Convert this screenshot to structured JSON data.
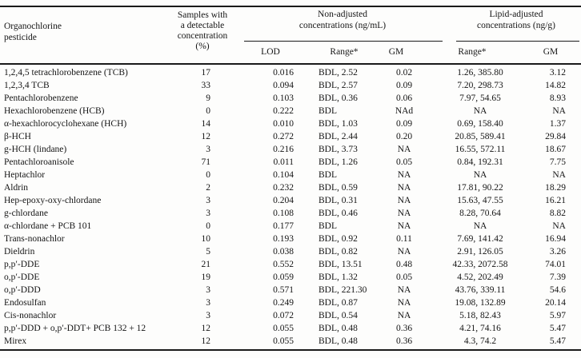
{
  "table": {
    "headers": {
      "organochlorine": [
        "Organochlorine",
        "pesticide"
      ],
      "samples": [
        "Samples with",
        "a detectable",
        "concentration",
        "(%)"
      ],
      "non_adjusted": [
        "Non-adjusted",
        "concentrations (ng/mL)"
      ],
      "lipid_adjusted": [
        "Lipid-adjusted",
        "concentrations (ng/g)"
      ],
      "sub": [
        "LOD",
        "Range*",
        "GM",
        "Range*",
        "GM"
      ]
    },
    "rows": [
      [
        "1,2,4,5 tetrachlorobenzene (TCB)",
        "17",
        "0.016",
        "BDL, 2.52",
        "0.02",
        "1.26, 385.80",
        "3.12"
      ],
      [
        "1,2,3,4 TCB",
        "33",
        "0.094",
        "BDL, 2.57",
        "0.09",
        "7.20, 298.73",
        "14.82"
      ],
      [
        "Pentachlorobenzene",
        "9",
        "0.103",
        "BDL, 0.36",
        "0.06",
        "7.97, 54.65",
        "8.93"
      ],
      [
        "Hexachlorobenzene (HCB)",
        "0",
        "0.222",
        "BDL",
        "NAd",
        "NA",
        "NA"
      ],
      [
        "α-hexachlorocyclohexane (HCH)",
        "14",
        "0.010",
        "BDL, 1.03",
        "0.09",
        "0.69, 158.40",
        "1.37"
      ],
      [
        "β-HCH",
        "12",
        "0.272",
        "BDL, 2.44",
        "0.20",
        "20.85, 589.41",
        "29.84"
      ],
      [
        "g-HCH (lindane)",
        "3",
        "0.216",
        "BDL, 3.73",
        "NA",
        "16.55, 572.11",
        "18.67"
      ],
      [
        "Pentachloroanisole",
        "71",
        "0.011",
        "BDL, 1.26",
        "0.05",
        "0.84, 192.31",
        "7.75"
      ],
      [
        "Heptachlor",
        "0",
        "0.104",
        "BDL",
        "NA",
        "NA",
        "NA"
      ],
      [
        "Aldrin",
        "2",
        "0.232",
        "BDL, 0.59",
        "NA",
        "17.81, 90.22",
        "18.29"
      ],
      [
        "Hep-epoxy-oxy-chlordane",
        "3",
        "0.204",
        "BDL, 0.31",
        "NA",
        "15.63, 47.55",
        "16.21"
      ],
      [
        "g-chlordane",
        "3",
        "0.108",
        "BDL, 0.46",
        "NA",
        "8.28, 70.64",
        "8.82"
      ],
      [
        "α-chlordane + PCB 101",
        "0",
        "0.177",
        "BDL",
        "NA",
        "NA",
        "NA"
      ],
      [
        "Trans-nonachlor",
        "10",
        "0.193",
        "BDL, 0.92",
        "0.11",
        "7.69, 141.42",
        "16.94"
      ],
      [
        "Dieldrin",
        "5",
        "0.038",
        "BDL, 0.82",
        "NA",
        "2.91, 126.05",
        "3.26"
      ],
      [
        "p,p′-DDE",
        "21",
        "0.552",
        "BDL, 13.51",
        "0.48",
        "42.33, 2072.58",
        "74.01"
      ],
      [
        "o,p′-DDE",
        "19",
        "0.059",
        "BDL, 1.32",
        "0.05",
        "4.52, 202.49",
        "7.39"
      ],
      [
        "o,p′-DDD",
        "3",
        "0.571",
        "BDL, 221.30",
        "NA",
        "43.76, 339.11",
        "54.6"
      ],
      [
        "Endosulfan",
        "3",
        "0.249",
        "BDL, 0.87",
        "NA",
        "19.08, 132.89",
        "20.14"
      ],
      [
        "Cis-nonachlor",
        "3",
        "0.072",
        "BDL, 0.54",
        "NA",
        "5.18, 82.43",
        "5.97"
      ],
      [
        "p,p′-DDD + o,p′-DDT+ PCB 132 + 12",
        "12",
        "0.055",
        "BDL, 0.48",
        "0.36",
        "4.21, 74.16",
        "5.47"
      ],
      [
        "Mirex",
        "12",
        "0.055",
        "BDL, 0.48",
        "0.36",
        "4.3, 74.2",
        "5.47"
      ]
    ]
  }
}
